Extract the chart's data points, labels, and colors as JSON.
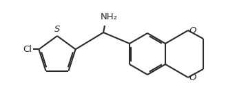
{
  "background_color": "#ffffff",
  "line_color": "#2a2a2a",
  "line_width": 1.5,
  "text_color": "#2a2a2a",
  "nh2_label": "NH₂",
  "cl_label": "Cl",
  "s_label": "S",
  "o_label1": "O",
  "o_label2": "O",
  "font_size": 9.5,
  "figsize": [
    3.28,
    1.36
  ],
  "dpi": 100
}
